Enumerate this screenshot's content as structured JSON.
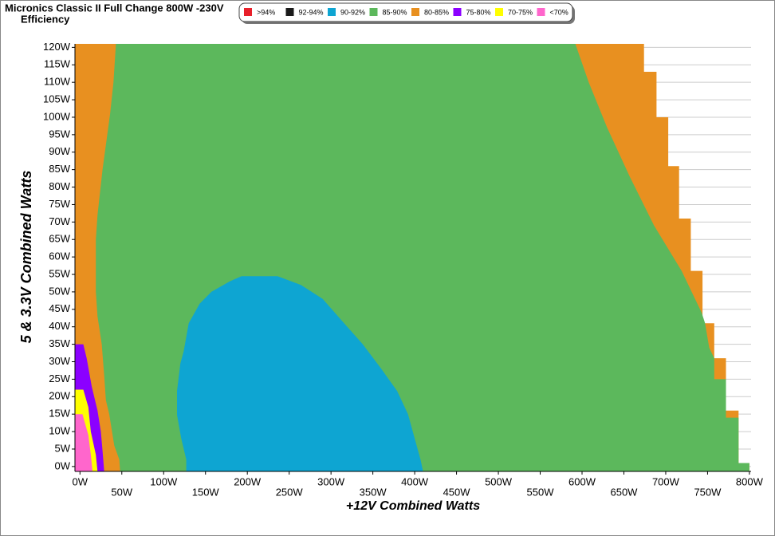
{
  "chart_data": {
    "type": "region",
    "title": "Micronics Classic II Full Change 800W -230V",
    "subtitle": "Efficiency",
    "x_label": "+12V Combined Watts",
    "y_label": "5 & 3.3V Combined Watts",
    "xlim": [
      -6,
      802
    ],
    "ylim": [
      -1.4,
      121
    ],
    "grid": true,
    "legend": "top",
    "xticks": [
      {
        "value": 0,
        "label": "0W"
      },
      {
        "value": 50,
        "label": "50W"
      },
      {
        "value": 100,
        "label": "100W"
      },
      {
        "value": 150,
        "label": "150W"
      },
      {
        "value": 200,
        "label": "200W"
      },
      {
        "value": 250,
        "label": "250W"
      },
      {
        "value": 300,
        "label": "300W"
      },
      {
        "value": 350,
        "label": "350W"
      },
      {
        "value": 400,
        "label": "400W"
      },
      {
        "value": 450,
        "label": "450W"
      },
      {
        "value": 500,
        "label": "500W"
      },
      {
        "value": 550,
        "label": "550W"
      },
      {
        "value": 600,
        "label": "600W"
      },
      {
        "value": 650,
        "label": "650W"
      },
      {
        "value": 700,
        "label": "700W"
      },
      {
        "value": 750,
        "label": "750W"
      },
      {
        "value": 800,
        "label": "800W"
      }
    ],
    "yticks": [
      {
        "value": 0,
        "label": "0W"
      },
      {
        "value": 5,
        "label": "5W"
      },
      {
        "value": 10,
        "label": "10W"
      },
      {
        "value": 15,
        "label": "15W"
      },
      {
        "value": 20,
        "label": "20W"
      },
      {
        "value": 25,
        "label": "25W"
      },
      {
        "value": 30,
        "label": "30W"
      },
      {
        "value": 35,
        "label": "35W"
      },
      {
        "value": 40,
        "label": "40W"
      },
      {
        "value": 45,
        "label": "45W"
      },
      {
        "value": 50,
        "label": "50W"
      },
      {
        "value": 55,
        "label": "55W"
      },
      {
        "value": 60,
        "label": "60W"
      },
      {
        "value": 65,
        "label": "65W"
      },
      {
        "value": 70,
        "label": "70W"
      },
      {
        "value": 75,
        "label": "75W"
      },
      {
        "value": 80,
        "label": "80W"
      },
      {
        "value": 85,
        "label": "85W"
      },
      {
        "value": 90,
        "label": "90W"
      },
      {
        "value": 95,
        "label": "95W"
      },
      {
        "value": 100,
        "label": "100W"
      },
      {
        "value": 105,
        "label": "105W"
      },
      {
        "value": 110,
        "label": "110W"
      },
      {
        "value": 115,
        "label": "115W"
      },
      {
        "value": 120,
        "label": "120W"
      }
    ],
    "series": [
      {
        "name": ">94%",
        "color": "#e8202a",
        "x": [],
        "y": []
      },
      {
        "name": "92-94%",
        "color": "#1a1a1a",
        "x": [],
        "y": []
      },
      {
        "name": "90-92%",
        "color": "#0ea5d2",
        "x": [
          193,
          236,
          264,
          290,
          312,
          338,
          360,
          379,
          392,
          400,
          407,
          410,
          127,
          127,
          121,
          116,
          116,
          120,
          124,
          130,
          143,
          157,
          179
        ],
        "y": [
          54.5,
          54.5,
          52,
          48,
          42,
          35,
          28,
          21.6,
          15,
          8,
          2,
          -1.4,
          -1.4,
          2,
          8,
          14.8,
          21.6,
          29.5,
          33,
          41,
          46.6,
          50,
          53
        ]
      },
      {
        "name": "85-90%",
        "color": "#5cb85c",
        "x": [
          43,
          592,
          608,
          630,
          657,
          686,
          719,
          743,
          747,
          752,
          758,
          758,
          772,
          772,
          787,
          787,
          800,
          800,
          48,
          47,
          41,
          35,
          31,
          29,
          26,
          21,
          19,
          19,
          21,
          27,
          36,
          40
        ],
        "y": [
          121,
          121,
          110,
          97,
          83,
          69,
          56,
          44,
          41,
          34,
          31,
          25,
          25,
          14,
          14,
          1,
          1,
          -1.4,
          -1.4,
          2,
          6,
          15,
          19,
          26,
          35,
          43,
          50,
          65,
          72,
          85,
          101,
          110
        ]
      },
      {
        "name": "80-85%",
        "color": "#e89020",
        "x": [
          -6,
          674,
          674,
          689,
          689,
          703,
          703,
          716,
          716,
          730,
          730,
          744,
          744,
          758,
          758,
          772,
          772,
          787,
          787,
          800,
          800,
          -6
        ],
        "y": [
          121,
          121,
          113,
          113,
          100,
          100,
          86,
          86,
          71,
          71,
          56,
          56,
          41,
          41,
          31,
          31,
          16,
          16,
          1,
          1,
          -1.4,
          -1.4
        ]
      },
      {
        "name": "75-80%",
        "color": "#8b00ff",
        "x": [
          -6,
          4,
          8,
          14,
          21,
          25,
          27,
          29,
          -6
        ],
        "y": [
          35,
          35,
          31,
          23,
          16,
          10,
          4.5,
          -1.4,
          -1.4
        ]
      },
      {
        "name": "70-75%",
        "color": "#ffff00",
        "x": [
          -6,
          4,
          10,
          13,
          19,
          21,
          -6
        ],
        "y": [
          22,
          22,
          17,
          10,
          3.4,
          -1.4,
          -1.4
        ]
      },
      {
        "name": "<70%",
        "color": "#ff66cc",
        "x": [
          -6,
          3,
          10,
          13,
          15,
          -6
        ],
        "y": [
          15,
          15,
          9,
          3.4,
          -1.4,
          -1.4
        ]
      }
    ]
  }
}
